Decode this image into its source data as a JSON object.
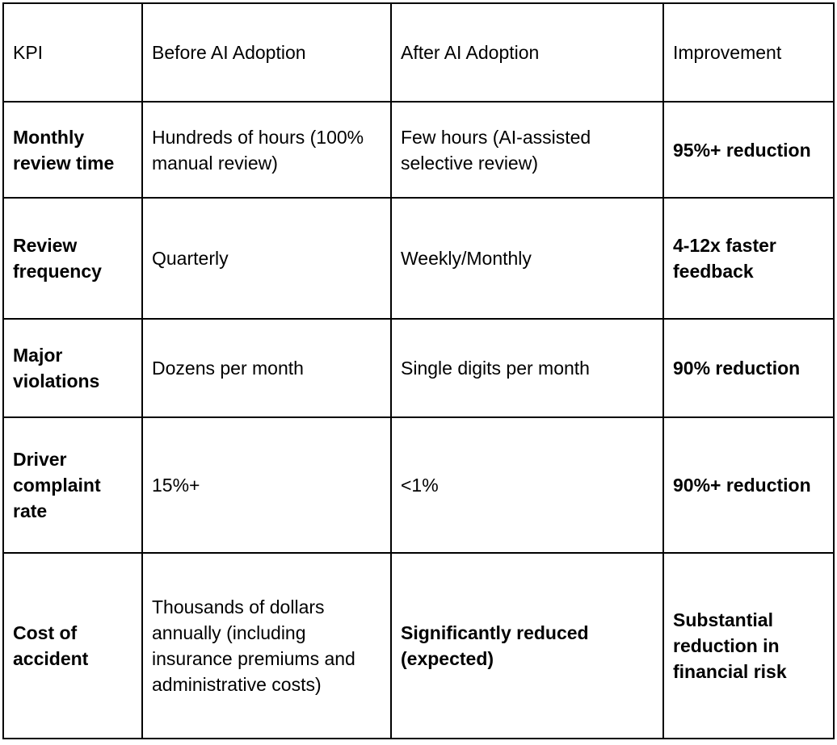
{
  "table": {
    "headers": [
      "KPI",
      "Before AI Adoption",
      "After AI Adoption",
      "Improvement"
    ],
    "rows": [
      {
        "kpi": "Monthly review time",
        "before": "Hundreds of hours (100% manual review)",
        "after": "Few hours (AI-assisted selective review)",
        "improvement": "95%+ reduction"
      },
      {
        "kpi": "Review frequency",
        "before": "Quarterly",
        "after": "Weekly/Monthly",
        "improvement": "4-12x faster feedback"
      },
      {
        "kpi": "Major violations",
        "before": "Dozens per month",
        "after": "Single digits per month",
        "improvement": "90% reduction"
      },
      {
        "kpi": "Driver complaint rate",
        "before": "15%+",
        "after": "<1%",
        "improvement": "90%+ reduction"
      },
      {
        "kpi": "Cost of accident",
        "before": "Thousands of dollars annually (including insurance premiums and administrative costs)",
        "after": "Significantly reduced (expected)",
        "improvement": "Substantial reduction in financial risk"
      }
    ]
  },
  "colors": {
    "border": "#000000",
    "text": "#000000",
    "background": "#ffffff"
  }
}
